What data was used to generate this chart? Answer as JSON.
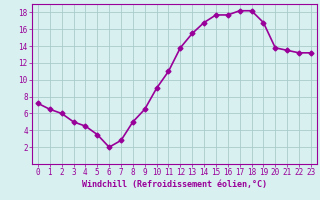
{
  "x": [
    0,
    1,
    2,
    3,
    4,
    5,
    6,
    7,
    8,
    9,
    10,
    11,
    12,
    13,
    14,
    15,
    16,
    17,
    18,
    19,
    20,
    21,
    22,
    23
  ],
  "y": [
    7.2,
    6.5,
    6.0,
    5.0,
    4.5,
    3.5,
    2.0,
    2.8,
    5.0,
    6.5,
    9.0,
    11.0,
    13.8,
    15.5,
    16.8,
    17.7,
    17.7,
    18.2,
    18.2,
    16.8,
    13.8,
    13.5,
    13.2,
    13.2
  ],
  "line_color": "#990099",
  "marker": "D",
  "marker_size": 2.5,
  "bg_color": "#d8f0f0",
  "grid_color": "#aacccc",
  "xlabel": "Windchill (Refroidissement éolien,°C)",
  "ylabel": "",
  "xlim": [
    -0.5,
    23.5
  ],
  "ylim": [
    0,
    19
  ],
  "yticks": [
    2,
    4,
    6,
    8,
    10,
    12,
    14,
    16,
    18
  ],
  "xticks": [
    0,
    1,
    2,
    3,
    4,
    5,
    6,
    7,
    8,
    9,
    10,
    11,
    12,
    13,
    14,
    15,
    16,
    17,
    18,
    19,
    20,
    21,
    22,
    23
  ],
  "tick_color": "#990099",
  "tick_label_color": "#990099",
  "xlabel_color": "#990099",
  "xlabel_fontsize": 6,
  "tick_fontsize": 5.5,
  "linewidth": 1.2
}
